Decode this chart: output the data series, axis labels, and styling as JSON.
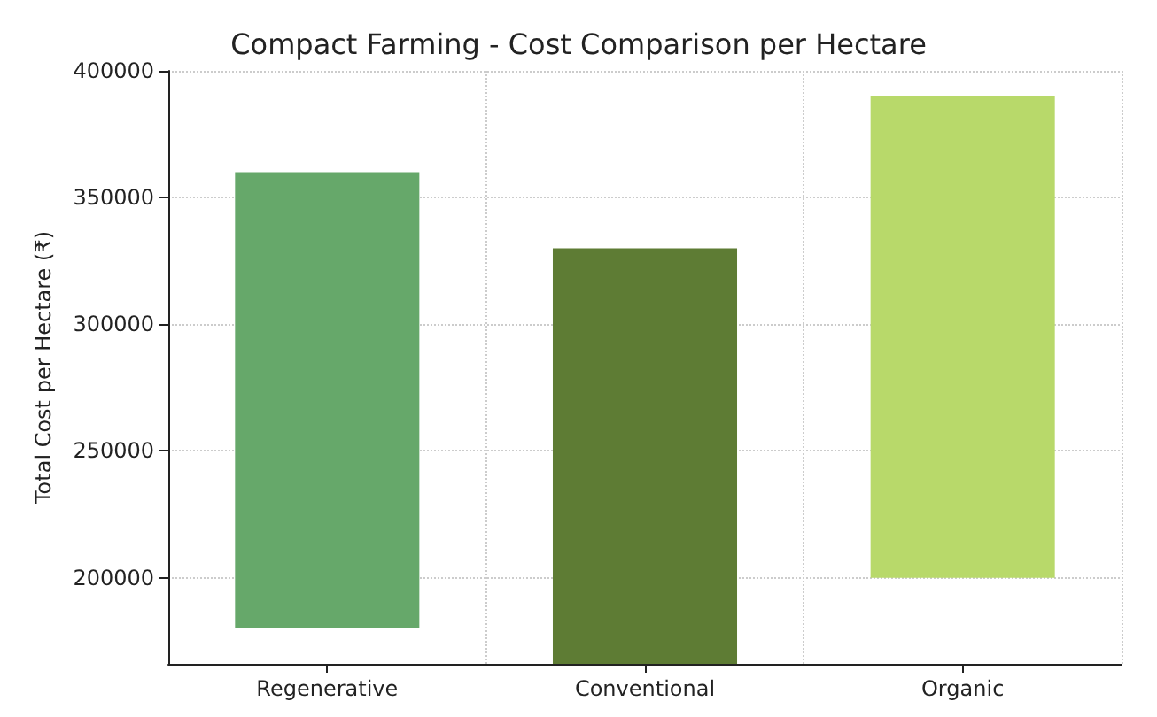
{
  "chart_data": {
    "type": "bar",
    "title": "Compact Farming - Cost Comparison per Hectare",
    "ylabel": "Total Cost per Hectare (₹)",
    "categories": [
      "Regenerative",
      "Conventional",
      "Organic"
    ],
    "values": [
      180000,
      164000,
      190000
    ],
    "base": [
      180000,
      166000,
      200000
    ],
    "colors": [
      "#66a86a",
      "#5e7c34",
      "#b8d96a"
    ],
    "ylim": [
      166000,
      400000
    ],
    "yticks": [
      200000,
      250000,
      300000,
      350000,
      400000
    ],
    "grid": true
  }
}
